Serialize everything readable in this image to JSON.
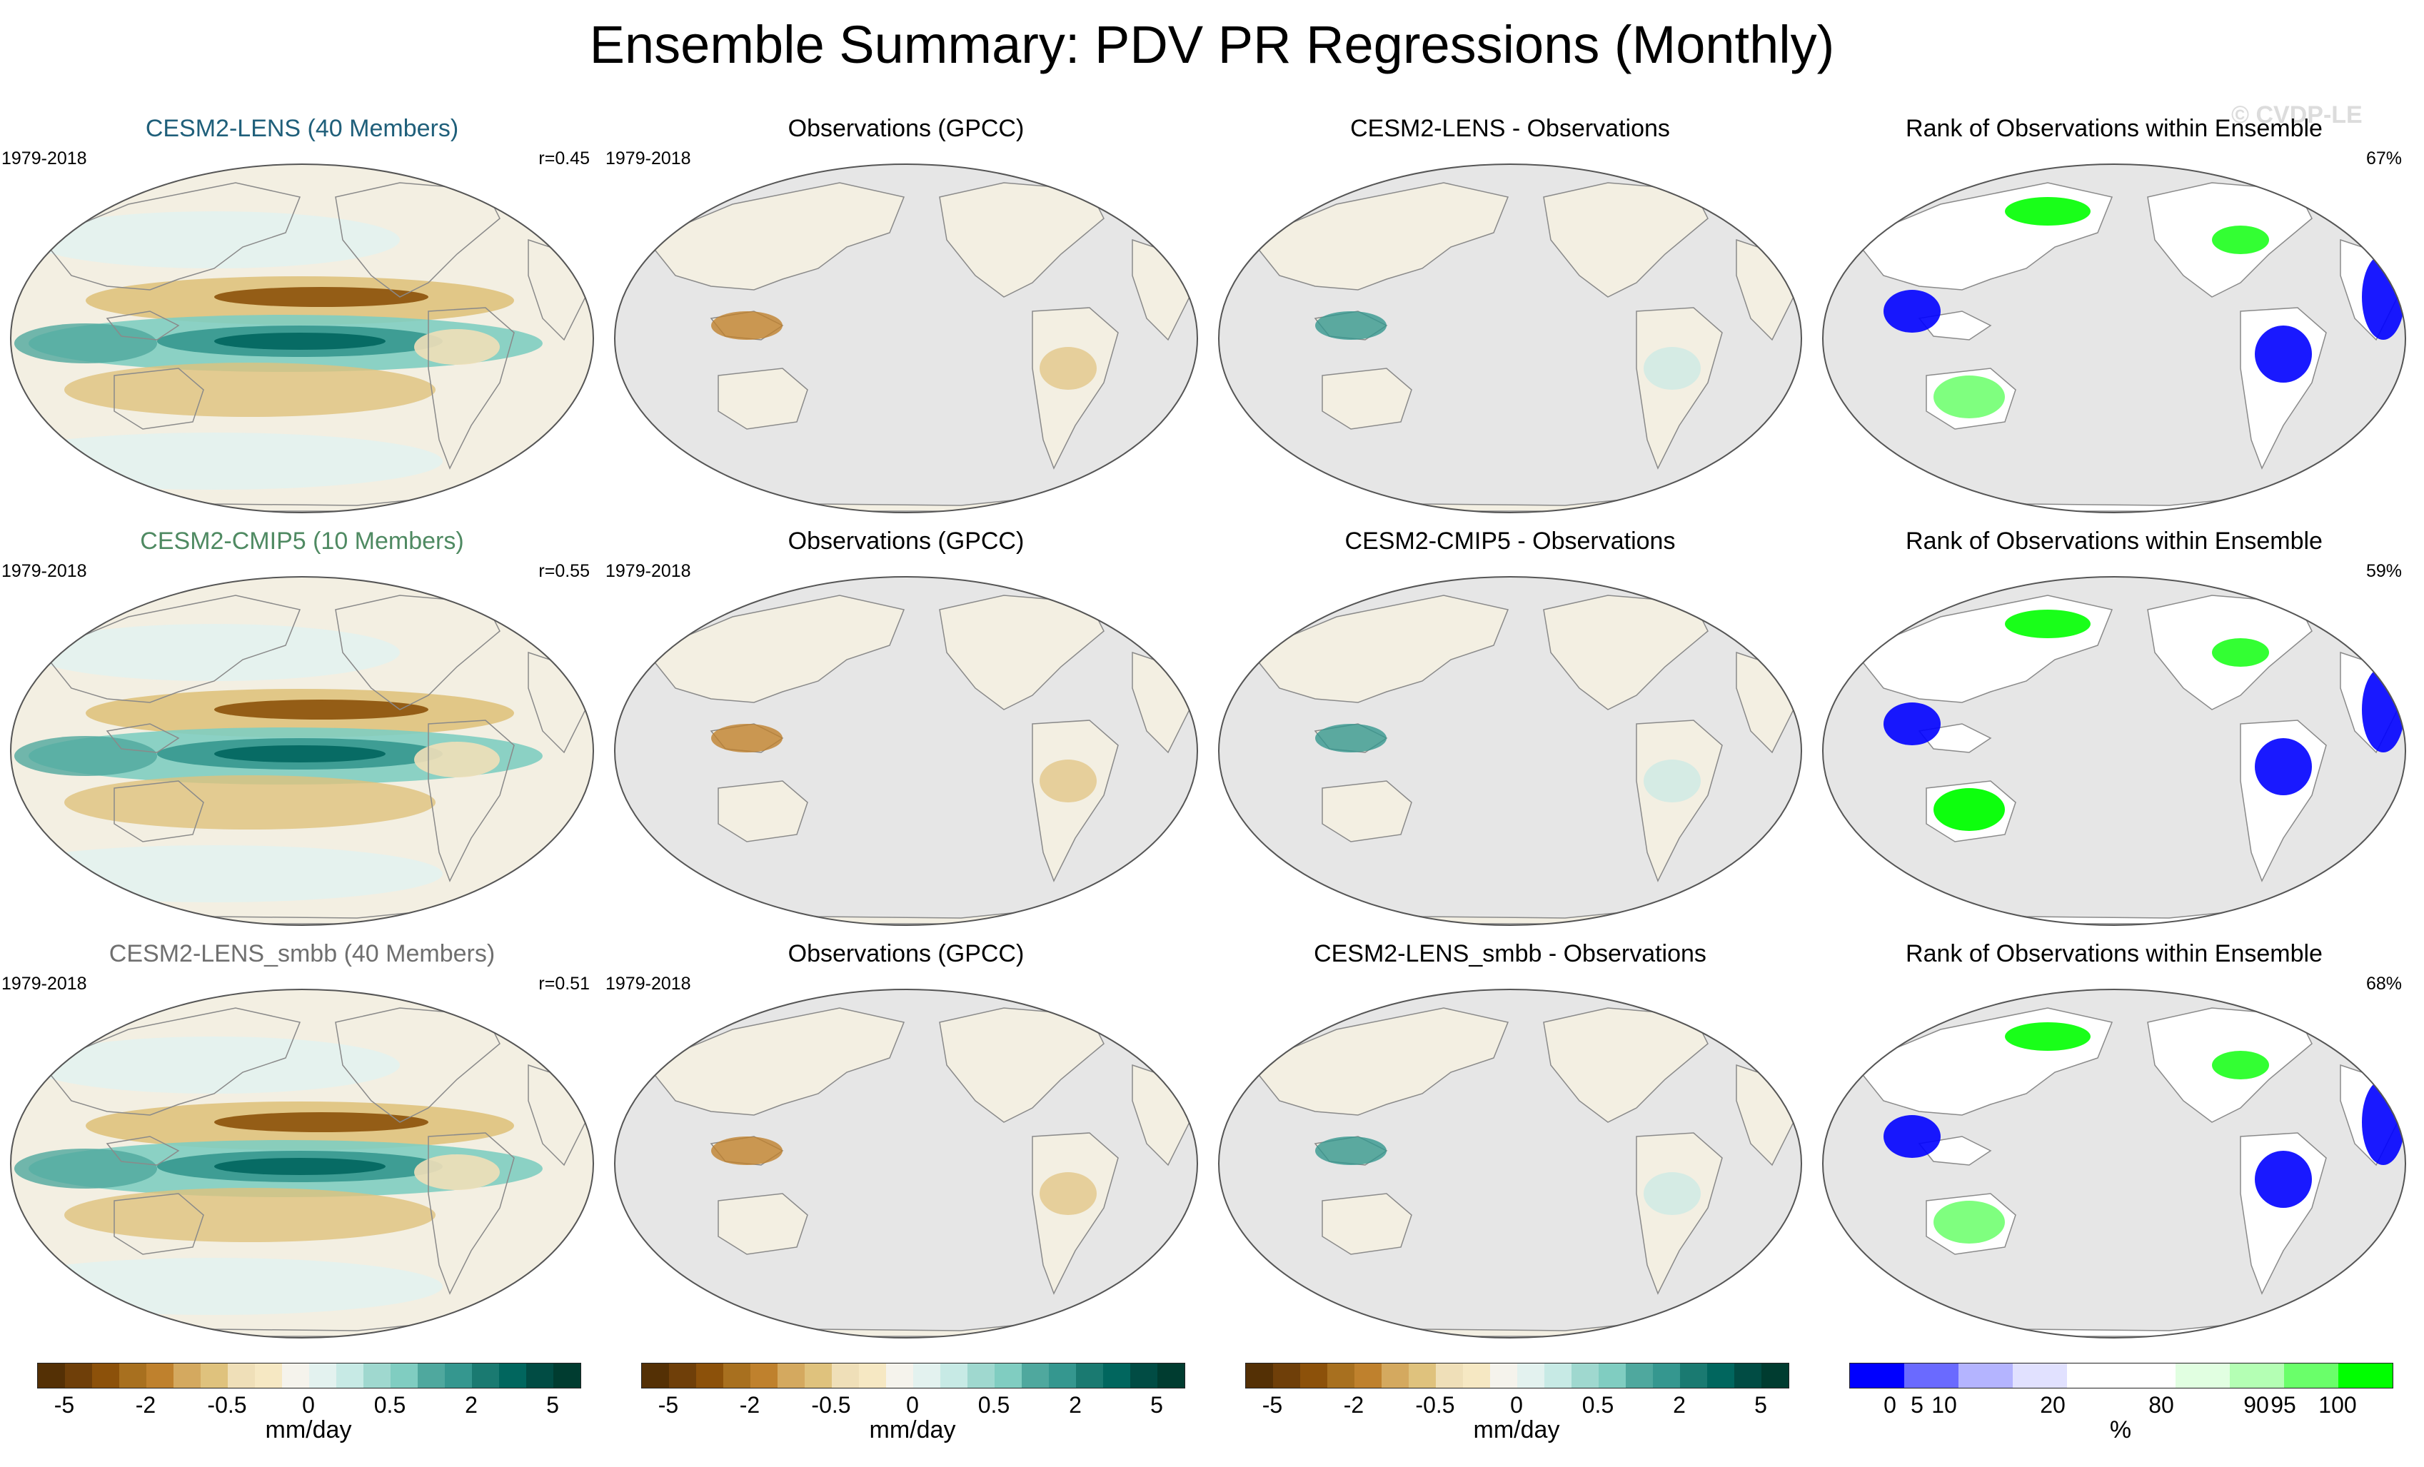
{
  "title": "Ensemble Summary: PDV PR Regressions (Monthly)",
  "watermark": "© CVDP-LE",
  "rows": [
    {
      "model_title": "CESM2-LENS (40 Members)",
      "period": "1979-2018",
      "r": "r=0.45",
      "obs_title": "Observations (GPCC)",
      "obs_period": "1979-2018",
      "diff_title": "CESM2-LENS - Observations",
      "rank_title": "Rank of Observations within Ensemble",
      "rank_pct": "67%"
    },
    {
      "model_title": "CESM2-CMIP5 (10 Members)",
      "period": "1979-2018",
      "r": "r=0.55",
      "obs_title": "Observations (GPCC)",
      "obs_period": "1979-2018",
      "diff_title": "CESM2-CMIP5 - Observations",
      "rank_title": "Rank of Observations within Ensemble",
      "rank_pct": "59%"
    },
    {
      "model_title": "CESM2-LENS_smbb (40 Members)",
      "period": "1979-2018",
      "r": "r=0.51",
      "obs_title": "Observations (GPCC)",
      "obs_period": "1979-2018",
      "diff_title": "CESM2-LENS_smbb - Observations",
      "rank_title": "Rank of Observations within Ensemble",
      "rank_pct": "68%"
    }
  ],
  "colorbars": {
    "pr": {
      "colors": [
        "#543005",
        "#6f3f09",
        "#8c510a",
        "#a8701f",
        "#bf812d",
        "#d4a95f",
        "#dfc27d",
        "#efdfb8",
        "#f6e8c3",
        "#f5f3ec",
        "#e3f2ef",
        "#c7eae5",
        "#9fd8cf",
        "#80cdc1",
        "#4fa89e",
        "#35978f",
        "#1a7a71",
        "#01665e",
        "#014c44",
        "#003c30"
      ],
      "tick_labels": [
        "-5",
        "-2",
        "-0.5",
        "0",
        "0.5",
        "2",
        "5"
      ],
      "unit": "mm/day"
    },
    "rank": {
      "colors": [
        "#0000ff",
        "#6a6aff",
        "#b4b4ff",
        "#e1e1ff",
        "#ffffff",
        "#ffffff",
        "#e1ffe1",
        "#b4ffb4",
        "#6aff6a",
        "#00ff00"
      ],
      "tick_labels": [
        "0",
        "5",
        "10",
        "20",
        "80",
        "90",
        "95",
        "100"
      ],
      "unit": "%"
    }
  }
}
